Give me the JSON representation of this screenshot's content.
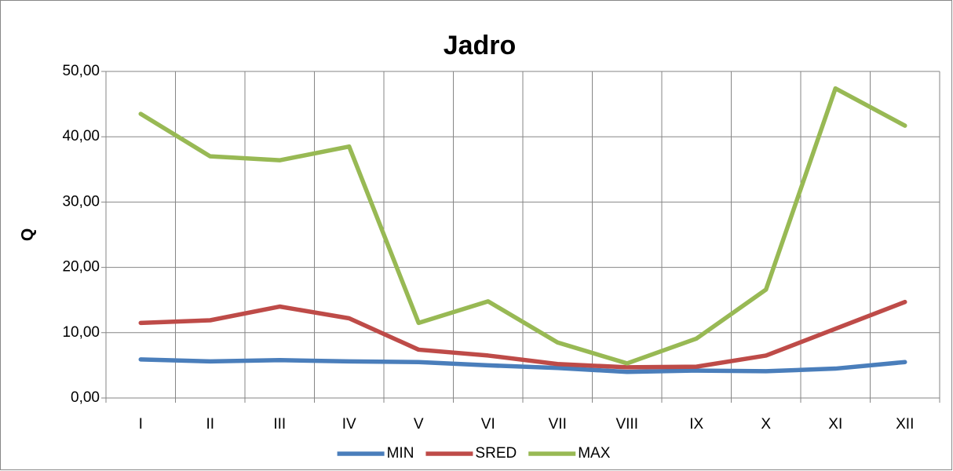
{
  "chart_data": {
    "type": "line",
    "title": "Jadro",
    "y_label": "Q",
    "categories": [
      "I",
      "II",
      "III",
      "IV",
      "V",
      "VI",
      "VII",
      "VIII",
      "IX",
      "X",
      "XI",
      "XII"
    ],
    "series": [
      {
        "name": "MIN",
        "color": "#4a7ebb",
        "values": [
          5.9,
          5.6,
          5.8,
          5.6,
          5.5,
          5.0,
          4.6,
          4.0,
          4.2,
          4.1,
          4.5,
          5.5
        ]
      },
      {
        "name": "SRED",
        "color": "#be4b48",
        "values": [
          11.5,
          11.9,
          14.0,
          12.2,
          7.4,
          6.5,
          5.2,
          4.7,
          4.8,
          6.5,
          10.6,
          14.7
        ]
      },
      {
        "name": "MAX",
        "color": "#98b954",
        "values": [
          43.5,
          37.0,
          36.4,
          38.5,
          11.5,
          14.8,
          8.5,
          5.3,
          9.1,
          16.6,
          47.4,
          41.7
        ]
      }
    ],
    "ylim": [
      0,
      50
    ],
    "yticks": [
      {
        "value": 0,
        "label": "0,00"
      },
      {
        "value": 10,
        "label": "10,00"
      },
      {
        "value": 20,
        "label": "20,00"
      },
      {
        "value": 30,
        "label": "30,00"
      },
      {
        "value": 40,
        "label": "40,00"
      },
      {
        "value": 50,
        "label": "50,00"
      }
    ],
    "grid": true,
    "legend": "bottom"
  }
}
